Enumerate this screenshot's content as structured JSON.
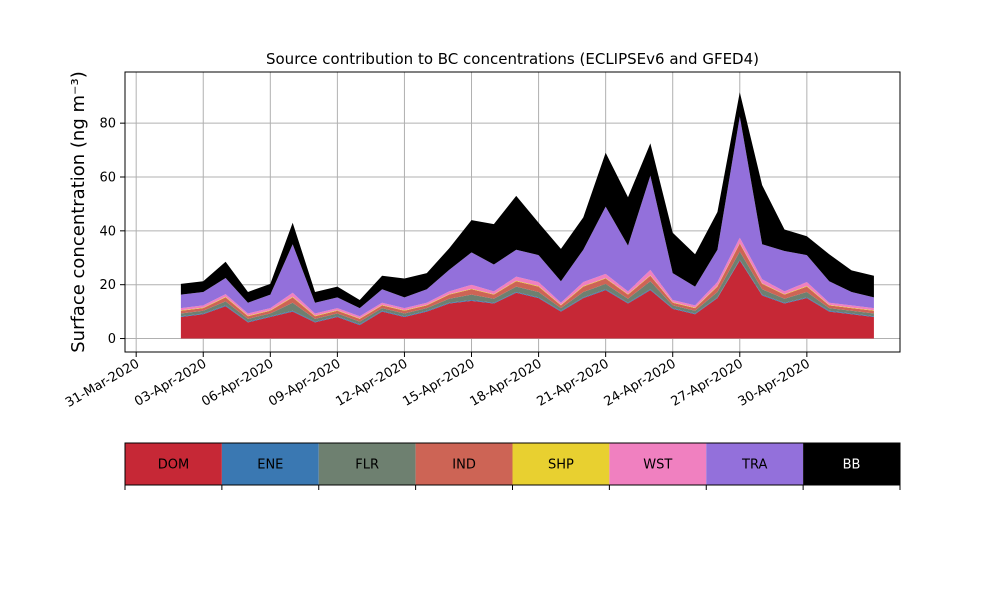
{
  "chart_data": {
    "type": "area",
    "title": "Source contribution to BC concentrations (ECLIPSEv6 and GFED4)",
    "ylabel": "Surface concentration (ng m⁻³)",
    "xlabel": "",
    "xlim": [
      "2020-03-30T12:00",
      "2020-05-04T04:00"
    ],
    "ylim": [
      -5,
      99
    ],
    "yticks": [
      0,
      20,
      40,
      60,
      80
    ],
    "xtick_dates": [
      "2020-03-31",
      "2020-04-03",
      "2020-04-06",
      "2020-04-09",
      "2020-04-12",
      "2020-04-15",
      "2020-04-18",
      "2020-04-21",
      "2020-04-24",
      "2020-04-27",
      "2020-04-30"
    ],
    "xtick_labels": [
      "31-Mar-2020",
      "03-Apr-2020",
      "06-Apr-2020",
      "09-Apr-2020",
      "12-Apr-2020",
      "15-Apr-2020",
      "18-Apr-2020",
      "21-Apr-2020",
      "24-Apr-2020",
      "27-Apr-2020",
      "30-Apr-2020"
    ],
    "grid": true,
    "stacked": true,
    "x": [
      "2020-04-02T00:00",
      "2020-04-03T00:00",
      "2020-04-04T00:00",
      "2020-04-05T00:00",
      "2020-04-06T00:00",
      "2020-04-07T00:00",
      "2020-04-08T00:00",
      "2020-04-09T00:00",
      "2020-04-10T00:00",
      "2020-04-11T00:00",
      "2020-04-12T00:00",
      "2020-04-13T00:00",
      "2020-04-14T00:00",
      "2020-04-15T00:00",
      "2020-04-16T00:00",
      "2020-04-17T00:00",
      "2020-04-18T00:00",
      "2020-04-19T00:00",
      "2020-04-20T00:00",
      "2020-04-21T00:00",
      "2020-04-22T00:00",
      "2020-04-23T00:00",
      "2020-04-24T00:00",
      "2020-04-25T00:00",
      "2020-04-26T00:00",
      "2020-04-27T00:00",
      "2020-04-28T00:00",
      "2020-04-29T00:00",
      "2020-04-30T00:00",
      "2020-05-01T00:00",
      "2020-05-02T00:00",
      "2020-05-03T00:00"
    ],
    "series": [
      {
        "name": "DOM",
        "color": "#c62836",
        "values": [
          8,
          9,
          12,
          6,
          8,
          10,
          6,
          8,
          5,
          10,
          8,
          10,
          13,
          14,
          13,
          17,
          15,
          10,
          15,
          18,
          13,
          18,
          11,
          9,
          15,
          29,
          16,
          13,
          15,
          10,
          9,
          8
        ]
      },
      {
        "name": "ENE",
        "color": "#3a78b2",
        "values": [
          0.3,
          0.3,
          0.3,
          0.3,
          0.3,
          0.3,
          0.3,
          0.3,
          0.3,
          0.3,
          0.3,
          0.3,
          0.3,
          0.3,
          0.3,
          0.3,
          0.3,
          0.3,
          0.3,
          0.3,
          0.3,
          0.3,
          0.3,
          0.3,
          0.3,
          0.3,
          0.3,
          0.3,
          0.3,
          0.3,
          0.3,
          0.3
        ]
      },
      {
        "name": "FLR",
        "color": "#6e8070",
        "values": [
          1,
          1,
          1.5,
          1,
          1,
          3,
          1,
          1,
          1,
          1,
          1,
          1,
          1.5,
          2,
          1.5,
          2,
          2,
          1,
          2,
          2,
          1.5,
          3,
          1,
          1,
          2,
          3,
          2,
          1.5,
          2,
          1,
          1,
          1
        ]
      },
      {
        "name": "IND",
        "color": "#cd6455",
        "values": [
          1,
          1,
          1.5,
          1,
          1,
          2,
          1,
          1,
          1,
          1,
          1,
          1,
          1.5,
          2,
          1.5,
          2,
          2,
          1,
          2,
          2,
          1.5,
          2,
          1,
          1,
          2,
          3,
          2,
          1.5,
          2,
          1,
          1,
          1
        ]
      },
      {
        "name": "SHP",
        "color": "#e8d030",
        "values": [
          0.2,
          0.2,
          0.2,
          0.2,
          0.2,
          0.2,
          0.2,
          0.2,
          0.2,
          0.2,
          0.2,
          0.2,
          0.2,
          0.2,
          0.2,
          0.2,
          0.2,
          0.2,
          0.2,
          0.2,
          0.2,
          0.2,
          0.2,
          0.2,
          0.2,
          0.2,
          0.2,
          0.2,
          0.2,
          0.2,
          0.2,
          0.2
        ]
      },
      {
        "name": "WST",
        "color": "#f080c0",
        "values": [
          0.8,
          0.8,
          1,
          0.8,
          0.8,
          1.5,
          0.8,
          0.8,
          0.8,
          0.8,
          0.8,
          0.8,
          1,
          1.5,
          1,
          1.5,
          1.5,
          0.8,
          1.5,
          1.5,
          1,
          2,
          0.8,
          0.8,
          1.5,
          2,
          1.5,
          1,
          1.5,
          0.8,
          0.8,
          0.8
        ]
      },
      {
        "name": "TRA",
        "color": "#9370db",
        "values": [
          5,
          5,
          6,
          4,
          5,
          18,
          4,
          4,
          3,
          5,
          4,
          5,
          8,
          12,
          10,
          10,
          10,
          8,
          12,
          25,
          17,
          35,
          10,
          7,
          12,
          45,
          13,
          15,
          10,
          8,
          5,
          4
        ]
      },
      {
        "name": "BB",
        "color": "#000000",
        "values": [
          4,
          4,
          6,
          4,
          4,
          8,
          4,
          4,
          3,
          5,
          7,
          6,
          8,
          12,
          15,
          20,
          12,
          12,
          12,
          20,
          18,
          12,
          15,
          12,
          14,
          9,
          22,
          8,
          7,
          10,
          8,
          8
        ]
      }
    ],
    "legend": {
      "placement": "below",
      "entries": [
        {
          "label": "DOM",
          "color": "#c62836",
          "text_color": "#000000"
        },
        {
          "label": "ENE",
          "color": "#3a78b2",
          "text_color": "#000000"
        },
        {
          "label": "FLR",
          "color": "#6e8070",
          "text_color": "#000000"
        },
        {
          "label": "IND",
          "color": "#cd6455",
          "text_color": "#000000"
        },
        {
          "label": "SHP",
          "color": "#e8d030",
          "text_color": "#000000"
        },
        {
          "label": "WST",
          "color": "#f080c0",
          "text_color": "#000000"
        },
        {
          "label": "TRA",
          "color": "#9370db",
          "text_color": "#000000"
        },
        {
          "label": "BB",
          "color": "#000000",
          "text_color": "#ffffff"
        }
      ]
    }
  }
}
